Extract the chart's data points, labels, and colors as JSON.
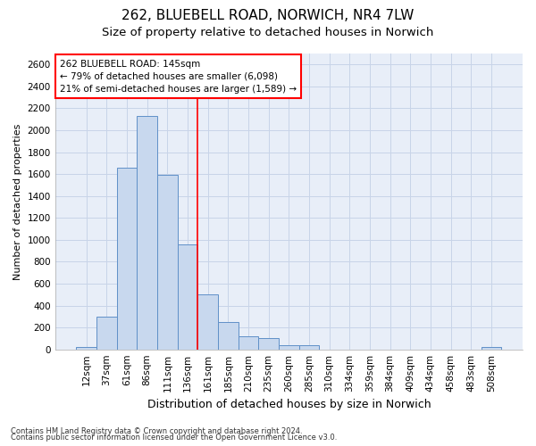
{
  "title": "262, BLUEBELL ROAD, NORWICH, NR4 7LW",
  "subtitle": "Size of property relative to detached houses in Norwich",
  "xlabel": "Distribution of detached houses by size in Norwich",
  "ylabel": "Number of detached properties",
  "footnote1": "Contains HM Land Registry data © Crown copyright and database right 2024.",
  "footnote2": "Contains public sector information licensed under the Open Government Licence v3.0.",
  "annotation_line1": "262 BLUEBELL ROAD: 145sqm",
  "annotation_line2": "← 79% of detached houses are smaller (6,098)",
  "annotation_line3": "21% of semi-detached houses are larger (1,589) →",
  "bar_categories": [
    "12sqm",
    "37sqm",
    "61sqm",
    "86sqm",
    "111sqm",
    "136sqm",
    "161sqm",
    "185sqm",
    "210sqm",
    "235sqm",
    "260sqm",
    "285sqm",
    "310sqm",
    "334sqm",
    "359sqm",
    "384sqm",
    "409sqm",
    "434sqm",
    "458sqm",
    "483sqm",
    "508sqm"
  ],
  "bar_values": [
    25,
    300,
    1660,
    2130,
    1590,
    960,
    500,
    250,
    120,
    100,
    40,
    40,
    0,
    0,
    0,
    0,
    0,
    0,
    0,
    0,
    25
  ],
  "bar_color": "#c8d8ee",
  "bar_edgecolor": "#6090c8",
  "vline_x": 6,
  "vline_color": "red",
  "vline_lw": 1.2,
  "ylim": [
    0,
    2700
  ],
  "yticks": [
    0,
    200,
    400,
    600,
    800,
    1000,
    1200,
    1400,
    1600,
    1800,
    2000,
    2200,
    2400,
    2600
  ],
  "grid_color": "#c8d4e8",
  "bg_color": "#e8eef8",
  "title_fontsize": 11,
  "subtitle_fontsize": 9.5,
  "xlabel_fontsize": 9,
  "ylabel_fontsize": 8,
  "tick_fontsize": 7.5,
  "annotation_fontsize": 7.5,
  "footnote_fontsize": 6
}
